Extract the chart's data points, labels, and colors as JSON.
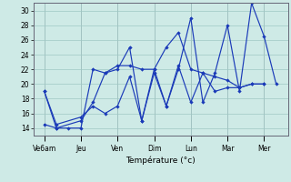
{
  "xlabel": "Température (°c)",
  "background_color": "#ceeae6",
  "grid_color": "#a0c8c4",
  "line_color": "#1a3ab8",
  "x_tick_labels": [
    "Ve6am",
    "Jeu",
    "Ven",
    "Dim",
    "Lun",
    "Mar",
    "Mer"
  ],
  "x_tick_positions": [
    0,
    1,
    2,
    3,
    4,
    5,
    6
  ],
  "ylim": [
    13.0,
    31.0
  ],
  "yticks": [
    14,
    16,
    18,
    20,
    22,
    24,
    26,
    28,
    30
  ],
  "series1_x": [
    0.0,
    0.33,
    0.66,
    1.0,
    1.33,
    1.66,
    2.0,
    2.33,
    2.66,
    3.0,
    3.33,
    3.66,
    4.0,
    4.33,
    4.66,
    5.0,
    5.33,
    5.66,
    6.0,
    6.33
  ],
  "series1_y": [
    19.0,
    14.0,
    14.0,
    14.0,
    22.0,
    21.5,
    22.0,
    25.0,
    15.0,
    21.5,
    17.0,
    22.0,
    29.0,
    17.5,
    21.5,
    28.0,
    19.0,
    31.0,
    26.5,
    20.0
  ],
  "series2_x": [
    0.0,
    0.33,
    1.0,
    1.33,
    1.66,
    2.0,
    2.33,
    2.66,
    3.0,
    3.33,
    3.66,
    4.0,
    4.33,
    4.66,
    5.0,
    5.33,
    5.66,
    6.0
  ],
  "series2_y": [
    19.0,
    14.5,
    15.5,
    17.0,
    16.0,
    17.0,
    21.0,
    15.0,
    22.0,
    17.0,
    22.5,
    17.5,
    21.5,
    19.0,
    19.5,
    19.5,
    20.0,
    20.0
  ],
  "series3_x": [
    0.0,
    0.33,
    1.0,
    1.33,
    1.66,
    2.0,
    2.33,
    2.66,
    3.0,
    3.33,
    3.66,
    4.0,
    4.33,
    4.66,
    5.0,
    5.33,
    5.66,
    6.0
  ],
  "series3_y": [
    14.5,
    14.0,
    15.0,
    17.5,
    21.5,
    22.5,
    22.5,
    22.0,
    22.0,
    25.0,
    27.0,
    22.0,
    21.5,
    21.0,
    20.5,
    19.5,
    20.0,
    20.0
  ]
}
